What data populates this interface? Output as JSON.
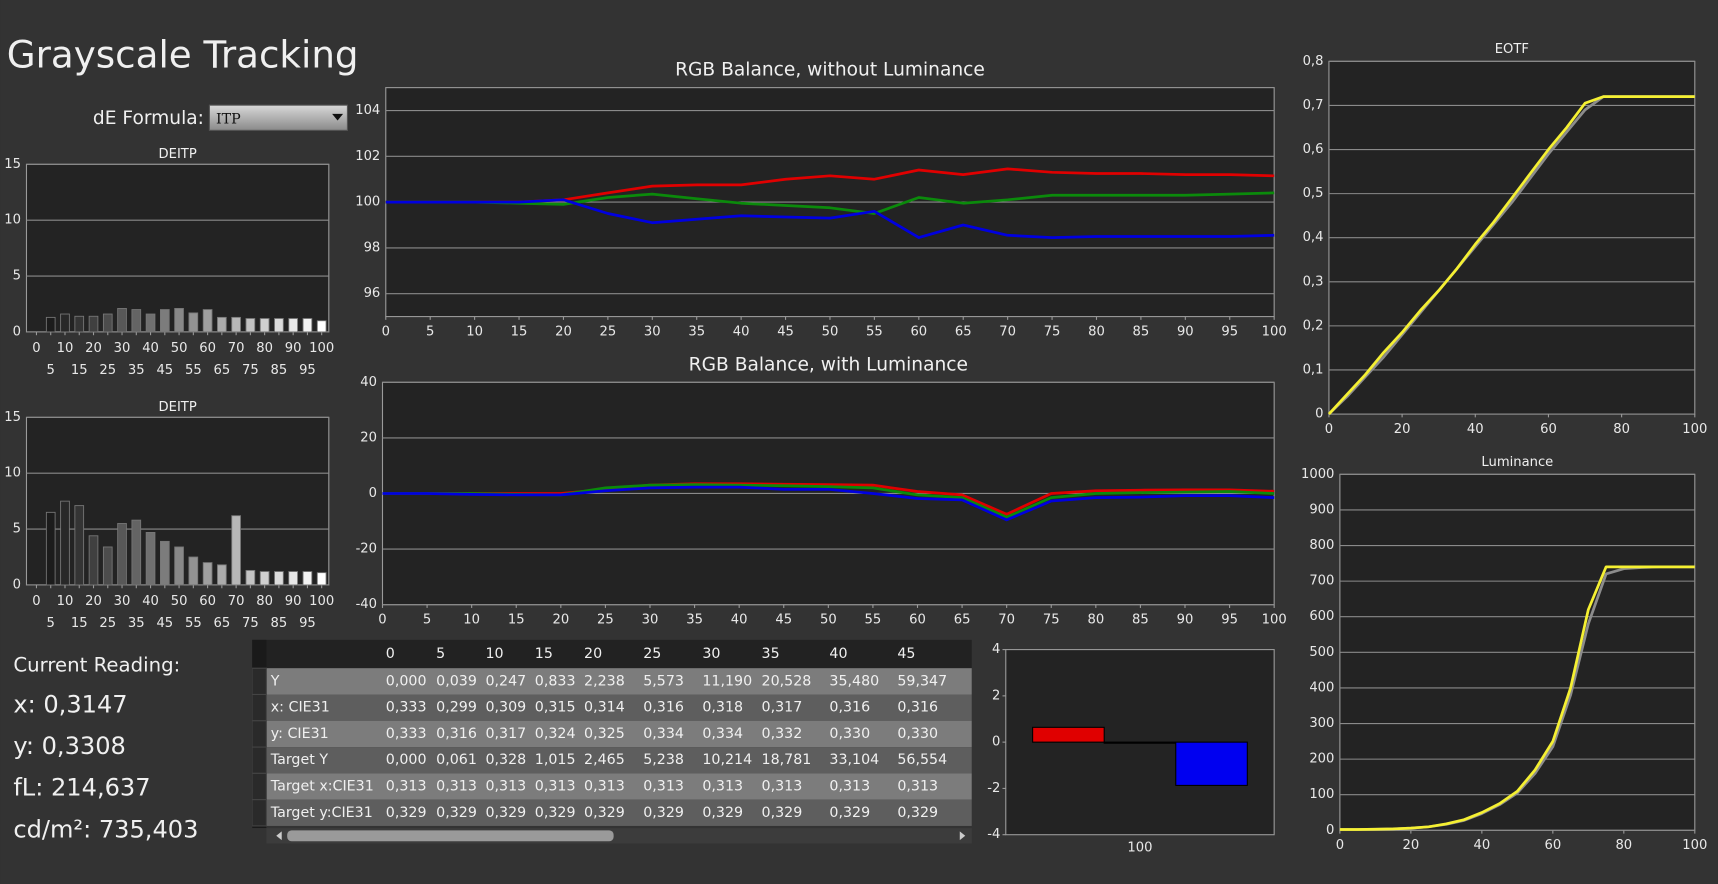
{
  "header": {
    "title": "Grayscale Tracking",
    "formula_label": "dE Formula:",
    "formula_value": "ITP"
  },
  "current_reading": {
    "title": "Current Reading:",
    "lines": [
      "x: 0,3147",
      "y: 0,3308",
      "fL: 214,637",
      "cd/m²: 735,403"
    ]
  },
  "table": {
    "header": [
      "0",
      "5",
      "10",
      "15",
      "20",
      "25",
      "30",
      "35",
      "40",
      "45"
    ],
    "rows": [
      [
        "Y",
        "0,000",
        "0,039",
        "0,247",
        "0,833",
        "2,238",
        "5,573",
        "11,190",
        "20,528",
        "35,480",
        "59,347"
      ],
      [
        "x: CIE31",
        "0,333",
        "0,299",
        "0,309",
        "0,315",
        "0,314",
        "0,316",
        "0,318",
        "0,317",
        "0,316",
        "0,316"
      ],
      [
        "y: CIE31",
        "0,333",
        "0,316",
        "0,317",
        "0,324",
        "0,325",
        "0,334",
        "0,334",
        "0,332",
        "0,330",
        "0,330"
      ],
      [
        "Target Y",
        "0,000",
        "0,061",
        "0,328",
        "1,015",
        "2,465",
        "5,238",
        "10,214",
        "18,781",
        "33,104",
        "56,554"
      ],
      [
        "Target x:CIE31",
        "0,313",
        "0,313",
        "0,313",
        "0,313",
        "0,313",
        "0,313",
        "0,313",
        "0,313",
        "0,313",
        "0,313"
      ],
      [
        "Target y:CIE31",
        "0,329",
        "0,329",
        "0,329",
        "0,329",
        "0,329",
        "0,329",
        "0,329",
        "0,329",
        "0,329",
        "0,329"
      ]
    ]
  },
  "chart_data": [
    {
      "type": "bar",
      "title": "DEITP",
      "x": [
        0,
        5,
        10,
        15,
        20,
        25,
        30,
        35,
        40,
        45,
        50,
        55,
        60,
        65,
        70,
        75,
        80,
        85,
        90,
        95,
        100
      ],
      "values": [
        null,
        1.3,
        1.6,
        1.4,
        1.4,
        1.6,
        2.1,
        2.0,
        1.6,
        2.0,
        2.1,
        1.7,
        2.0,
        1.3,
        1.3,
        1.2,
        1.2,
        1.2,
        1.2,
        1.2,
        1.0
      ],
      "bar_gradient": [
        "#101010",
        "#ffffff"
      ],
      "xlim": [
        -3.5,
        102.5
      ],
      "xticks": [
        0,
        5,
        10,
        15,
        20,
        25,
        30,
        35,
        40,
        45,
        50,
        55,
        60,
        65,
        70,
        75,
        80,
        85,
        90,
        95,
        100
      ],
      "ylim": [
        0,
        15
      ],
      "yticks": [
        0,
        5,
        10,
        15
      ],
      "grid": true
    },
    {
      "type": "bar",
      "title": "DEITP",
      "x": [
        0,
        5,
        10,
        15,
        20,
        25,
        30,
        35,
        40,
        45,
        50,
        55,
        60,
        65,
        70,
        75,
        80,
        85,
        90,
        95,
        100
      ],
      "values": [
        null,
        6.5,
        7.5,
        7.1,
        4.4,
        3.4,
        5.5,
        5.8,
        4.7,
        3.9,
        3.4,
        2.5,
        2.0,
        1.8,
        6.2,
        1.3,
        1.2,
        1.2,
        1.2,
        1.2,
        1.1
      ],
      "bar_gradient": [
        "#101010",
        "#ffffff"
      ],
      "xlim": [
        -3.5,
        102.5
      ],
      "xticks": [
        0,
        5,
        10,
        15,
        20,
        25,
        30,
        35,
        40,
        45,
        50,
        55,
        60,
        65,
        70,
        75,
        80,
        85,
        90,
        95,
        100
      ],
      "ylim": [
        0,
        15
      ],
      "yticks": [
        0,
        5,
        10,
        15
      ],
      "grid": true
    },
    {
      "type": "line",
      "title": "RGB Balance, without Luminance",
      "x": [
        0,
        5,
        10,
        15,
        20,
        25,
        30,
        35,
        40,
        45,
        50,
        55,
        60,
        65,
        70,
        75,
        80,
        85,
        90,
        95,
        100
      ],
      "series": [
        {
          "color": "#e00000",
          "values": [
            100,
            100,
            100,
            100,
            100.1,
            100.4,
            100.7,
            100.75,
            100.75,
            101.0,
            101.15,
            101.0,
            101.4,
            101.2,
            101.45,
            101.3,
            101.25,
            101.25,
            101.2,
            101.2,
            101.15
          ]
        },
        {
          "color": "#0b8a0b",
          "values": [
            100,
            100,
            100,
            99.95,
            99.9,
            100.2,
            100.35,
            100.15,
            99.95,
            99.85,
            99.75,
            99.5,
            100.2,
            99.95,
            100.1,
            100.3,
            100.3,
            100.3,
            100.3,
            100.35,
            100.4
          ]
        },
        {
          "color": "#0000e0",
          "values": [
            100,
            100,
            100,
            100,
            100.1,
            99.5,
            99.1,
            99.25,
            99.4,
            99.35,
            99.3,
            99.6,
            98.45,
            99.0,
            98.55,
            98.45,
            98.5,
            98.5,
            98.5,
            98.5,
            98.55
          ]
        }
      ],
      "xlim": [
        0,
        100
      ],
      "xticks": [
        0,
        5,
        10,
        15,
        20,
        25,
        30,
        35,
        40,
        45,
        50,
        55,
        60,
        65,
        70,
        75,
        80,
        85,
        90,
        95,
        100
      ],
      "ylim": [
        95,
        105
      ],
      "yticks": [
        96,
        98,
        100,
        102,
        104
      ],
      "grid": true
    },
    {
      "type": "line",
      "title": "RGB Balance, with Luminance",
      "x": [
        0,
        5,
        10,
        15,
        20,
        25,
        30,
        35,
        40,
        45,
        50,
        55,
        60,
        65,
        70,
        75,
        80,
        85,
        90,
        95,
        100
      ],
      "series": [
        {
          "color": "#e00000",
          "values": [
            0,
            0,
            0,
            0,
            0,
            1.5,
            3,
            3.5,
            3.5,
            3.3,
            3.2,
            3,
            0.7,
            -0.5,
            -7.5,
            0,
            1,
            1.2,
            1.3,
            1.3,
            0.8
          ]
        },
        {
          "color": "#0b8a0b",
          "values": [
            0,
            0,
            0,
            -0.3,
            -0.5,
            2,
            3,
            3.2,
            3.0,
            2.8,
            2.5,
            2,
            -0.5,
            -1.5,
            -8.5,
            -1.5,
            0,
            0.3,
            0.5,
            0.7,
            0
          ]
        },
        {
          "color": "#0000e0",
          "values": [
            0,
            0,
            -0.3,
            -0.5,
            -0.5,
            1,
            2,
            2.3,
            2.3,
            1.5,
            1.5,
            0,
            -1.8,
            -2.3,
            -9.5,
            -2.7,
            -1.5,
            -1.3,
            -0.8,
            -0.8,
            -1.5
          ]
        }
      ],
      "xlim": [
        0,
        100
      ],
      "xticks": [
        0,
        5,
        10,
        15,
        20,
        25,
        30,
        35,
        40,
        45,
        50,
        55,
        60,
        65,
        70,
        75,
        80,
        85,
        90,
        95,
        100
      ],
      "ylim": [
        -40,
        40
      ],
      "yticks": [
        -40,
        -20,
        0,
        20,
        40
      ],
      "grid": true
    },
    {
      "type": "line",
      "title": "EOTF",
      "x": [
        0,
        5,
        10,
        15,
        20,
        25,
        30,
        35,
        40,
        45,
        50,
        55,
        60,
        65,
        70,
        75,
        80,
        85,
        90,
        95,
        100
      ],
      "series": [
        {
          "color": "#8c8c8c",
          "values": [
            0,
            0.04,
            0.085,
            0.13,
            0.18,
            0.23,
            0.28,
            0.33,
            0.38,
            0.43,
            0.48,
            0.535,
            0.59,
            0.64,
            0.69,
            0.72,
            0.72,
            0.72,
            0.72,
            0.72,
            0.72
          ]
        },
        {
          "color": "#f5f032",
          "values": [
            0,
            0.045,
            0.09,
            0.14,
            0.185,
            0.235,
            0.28,
            0.33,
            0.385,
            0.435,
            0.49,
            0.545,
            0.6,
            0.65,
            0.705,
            0.72,
            0.72,
            0.72,
            0.72,
            0.72,
            0.72
          ]
        }
      ],
      "xlim": [
        0,
        100
      ],
      "xticks": [
        0,
        20,
        40,
        60,
        80,
        100
      ],
      "ylim": [
        0,
        0.8
      ],
      "yticks": [
        0,
        {
          "value": 0.1,
          "label": "0,1"
        },
        {
          "value": 0.2,
          "label": "0,2"
        },
        {
          "value": 0.3,
          "label": "0,3"
        },
        {
          "value": 0.4,
          "label": "0,4"
        },
        {
          "value": 0.5,
          "label": "0,5"
        },
        {
          "value": 0.6,
          "label": "0,6"
        },
        {
          "value": 0.7,
          "label": "0,7"
        },
        {
          "value": 0.8,
          "label": "0,8"
        }
      ],
      "grid": true
    },
    {
      "type": "line",
      "title": "Luminance",
      "x": [
        0,
        5,
        10,
        15,
        20,
        25,
        30,
        35,
        40,
        45,
        50,
        55,
        60,
        65,
        70,
        75,
        80,
        85,
        90,
        95,
        100
      ],
      "series": [
        {
          "color": "#8c8c8c",
          "values": [
            2.5,
            2.5,
            3,
            4,
            6,
            10,
            17,
            28,
            47,
            72,
            105,
            160,
            235,
            380,
            580,
            720,
            735,
            738,
            740,
            740,
            740
          ]
        },
        {
          "color": "#f5f032",
          "values": [
            2.5,
            2.5,
            3,
            4,
            6,
            10,
            18,
            30,
            50,
            75,
            110,
            170,
            250,
            400,
            620,
            740,
            740,
            740,
            740,
            740,
            740
          ]
        }
      ],
      "xlim": [
        0,
        100
      ],
      "xticks": [
        0,
        20,
        40,
        60,
        80,
        100
      ],
      "ylim": [
        0,
        1000
      ],
      "yticks": [
        0,
        100,
        200,
        300,
        400,
        500,
        600,
        700,
        800,
        900,
        1000
      ],
      "grid": true
    },
    {
      "type": "bar",
      "categories": [
        "100"
      ],
      "series": [
        {
          "color": "#e00000",
          "values": [
            0.64
          ]
        },
        {
          "color": "#0b8a0b",
          "values": [
            0
          ]
        },
        {
          "color": "#0000f0",
          "values": [
            -1.87
          ]
        }
      ],
      "ylim": [
        -4,
        4
      ],
      "yticks": [
        -4,
        -2,
        0,
        2,
        4
      ],
      "grid": false
    }
  ]
}
